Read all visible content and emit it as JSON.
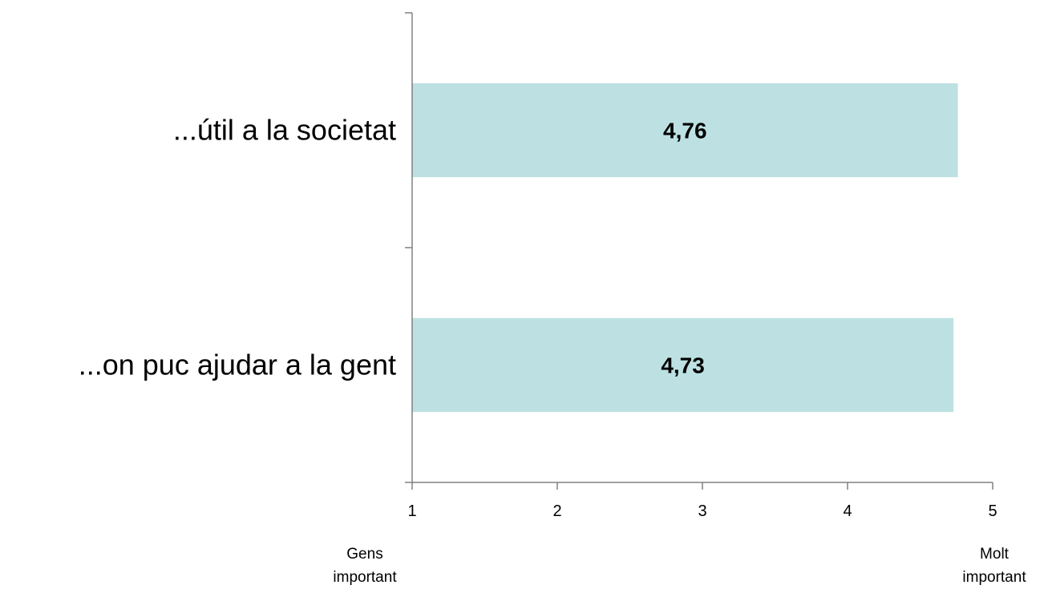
{
  "chart_data": {
    "type": "bar",
    "orientation": "horizontal",
    "categories": [
      "...útil a la societat",
      "...on puc ajudar a la gent"
    ],
    "values": [
      4.76,
      4.73
    ],
    "value_labels": [
      "4,76",
      "4,73"
    ],
    "xlim": [
      1,
      5
    ],
    "xticks": [
      1,
      2,
      3,
      4,
      5
    ],
    "xtick_labels": [
      "1",
      "2",
      "3",
      "4",
      "5"
    ],
    "scale_anchors": {
      "low": [
        "Gens",
        "important"
      ],
      "high": [
        "Molt",
        "important"
      ]
    },
    "bar_color": "#bde1e3",
    "axis_color": "#808080",
    "grid": false,
    "legend": "none"
  }
}
